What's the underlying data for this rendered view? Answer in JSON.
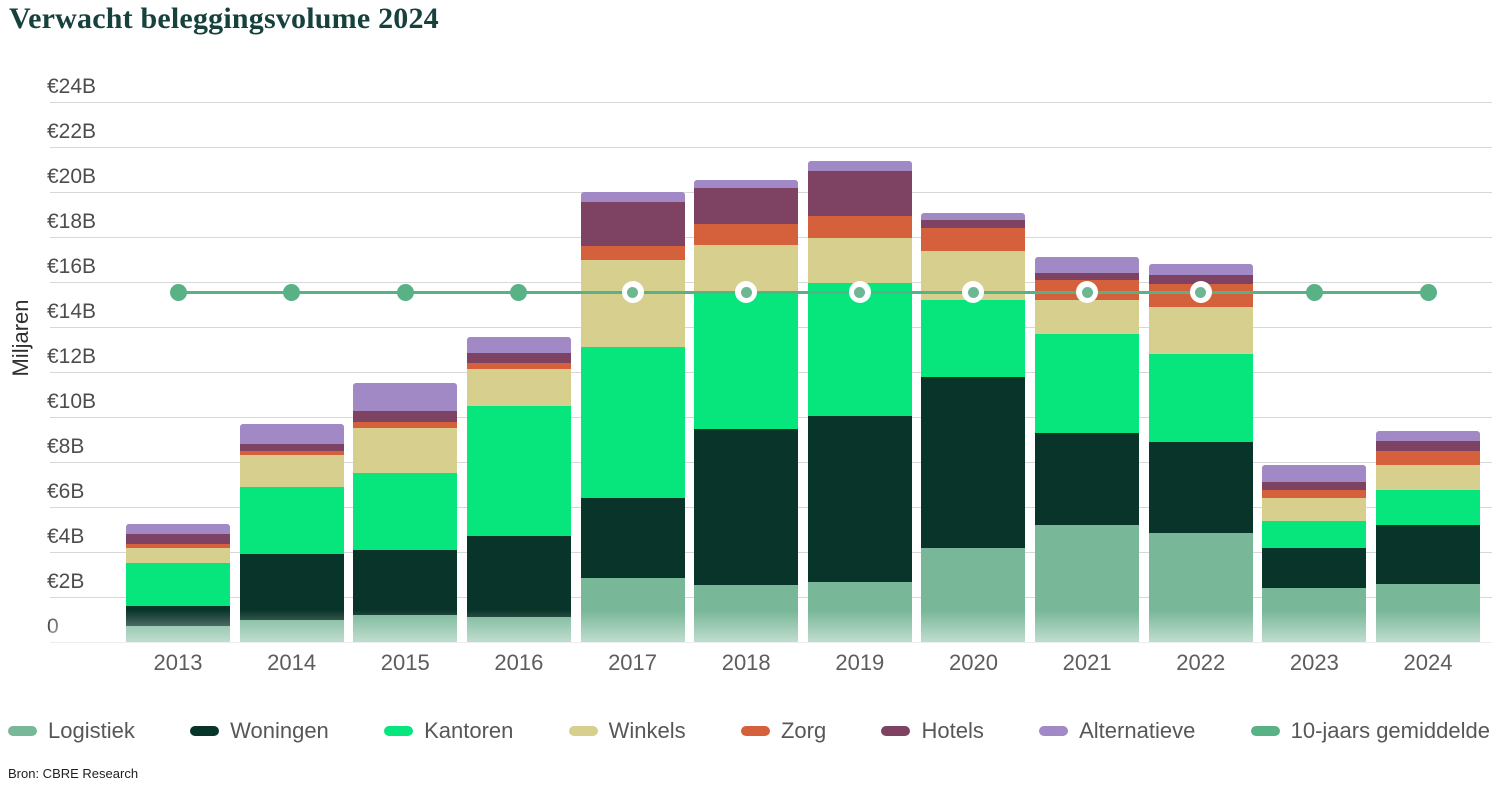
{
  "title": "Verwacht beleggingsvolume 2024",
  "source": "Bron: CBRE Research",
  "chart_data": {
    "type": "bar",
    "subtype": "stacked-bars-with-average-line",
    "title": "Verwacht beleggingsvolume 2024",
    "ylabel": "Miljaren",
    "ylim": [
      0,
      24
    ],
    "ytick_step": 2,
    "yticks": [
      "0",
      "€2B",
      "€4B",
      "€6B",
      "€8B",
      "€10B",
      "€12B",
      "€14B",
      "€16B",
      "€18B",
      "€20B",
      "€22B",
      "€24B"
    ],
    "grid": true,
    "legend_position": "bottom",
    "categories": [
      "2013",
      "2014",
      "2015",
      "2016",
      "2017",
      "2018",
      "2019",
      "2020",
      "2021",
      "2022",
      "2023",
      "2024"
    ],
    "series": [
      {
        "name": "Logistiek",
        "color": "#78b798",
        "values": [
          0.7,
          1.0,
          1.2,
          1.1,
          2.85,
          2.55,
          2.65,
          4.2,
          5.2,
          4.85,
          2.4,
          2.6
        ]
      },
      {
        "name": "Woningen",
        "color": "#093429",
        "values": [
          0.9,
          2.9,
          2.9,
          3.6,
          3.55,
          6.9,
          7.4,
          7.6,
          4.1,
          4.05,
          1.8,
          2.6
        ]
      },
      {
        "name": "Kantoren",
        "color": "#07e67c",
        "values": [
          1.9,
          3.0,
          3.4,
          5.8,
          6.7,
          6.1,
          5.9,
          3.4,
          4.4,
          3.9,
          1.2,
          1.55
        ]
      },
      {
        "name": "Winkels",
        "color": "#d7cf8e",
        "values": [
          0.7,
          1.4,
          2.0,
          1.65,
          3.9,
          2.1,
          2.0,
          2.2,
          1.5,
          2.1,
          1.0,
          1.1
        ]
      },
      {
        "name": "Zorg",
        "color": "#d4603c",
        "values": [
          0.15,
          0.2,
          0.3,
          0.25,
          0.6,
          0.95,
          1.0,
          1.0,
          0.9,
          1.0,
          0.35,
          0.65
        ]
      },
      {
        "name": "Hotels",
        "color": "#7e4263",
        "values": [
          0.45,
          0.3,
          0.45,
          0.45,
          1.95,
          1.6,
          2.0,
          0.35,
          0.3,
          0.4,
          0.35,
          0.45
        ]
      },
      {
        "name": "Alternatieve",
        "color": "#a089c5",
        "values": [
          0.45,
          0.9,
          1.25,
          0.7,
          0.45,
          0.35,
          0.45,
          0.3,
          0.7,
          0.5,
          0.75,
          0.45
        ]
      }
    ],
    "totals": [
      5.25,
      9.7,
      11.5,
      13.55,
      20.0,
      20.55,
      21.4,
      19.05,
      17.1,
      16.8,
      7.85,
      9.4
    ],
    "average_line": {
      "name": "10-jaars gemiddelde",
      "color": "#58b286",
      "dot_inner_color": "#6db793",
      "value": 15.55
    }
  }
}
